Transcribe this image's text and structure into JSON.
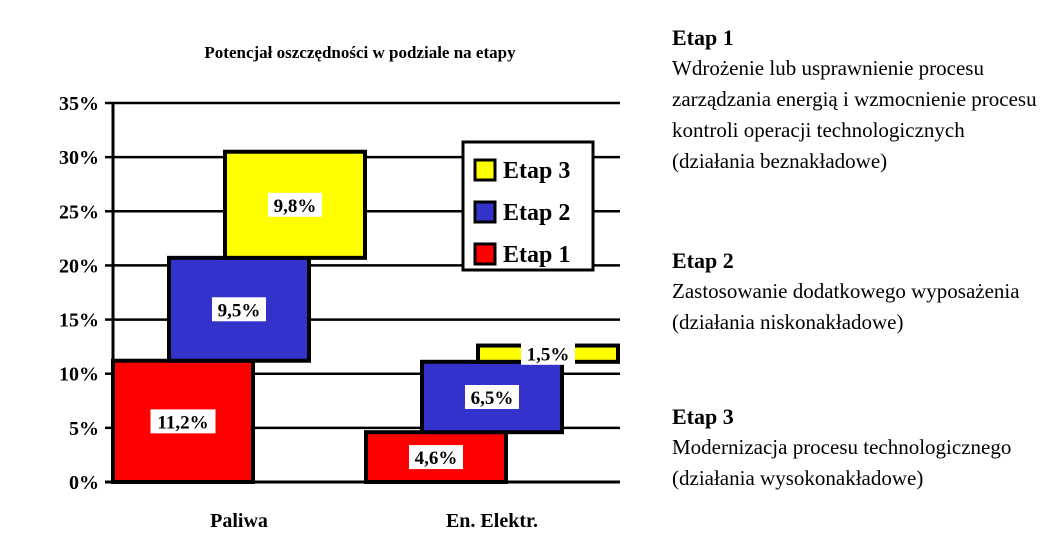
{
  "chart_data": {
    "type": "bar",
    "title": "Potencjał oszczędności w podziale na etapy",
    "categories": [
      "Paliwa",
      "En. Elektr."
    ],
    "ylim": [
      0,
      35
    ],
    "yticks": [
      0,
      5,
      10,
      15,
      20,
      25,
      30,
      35
    ],
    "ytick_labels": [
      "0%",
      "5%",
      "10%",
      "15%",
      "20%",
      "25%",
      "30%",
      "35%"
    ],
    "grid": true,
    "legend_position": "top-right",
    "stacked_offset": true,
    "series": [
      {
        "name": "Etap 1",
        "color": "#ff0000",
        "values": [
          11.2,
          4.6
        ],
        "labels": [
          "11,2%",
          "4,6%"
        ]
      },
      {
        "name": "Etap 2",
        "color": "#3333cc",
        "values": [
          9.5,
          6.5
        ],
        "labels": [
          "9,5%",
          "6,5%"
        ]
      },
      {
        "name": "Etap 3",
        "color": "#ffff00",
        "values": [
          9.8,
          1.5
        ],
        "labels": [
          "9,8%",
          "1,5%"
        ]
      }
    ],
    "legend_order": [
      "Etap 3",
      "Etap 2",
      "Etap 1"
    ]
  },
  "descriptions": [
    {
      "heading": "Etap 1",
      "body": "Wdrożenie lub usprawnienie procesu zarządzania energią i wzmocnienie procesu kontroli operacji technologicznych (działania beznakładowe)"
    },
    {
      "heading": "Etap 2",
      "body": "Zastosowanie dodatkowego wyposażenia (działania niskonakładowe)"
    },
    {
      "heading": "Etap 3",
      "body": "Modernizacja  procesu technologicznego (działania wysokonakładowe)"
    }
  ]
}
